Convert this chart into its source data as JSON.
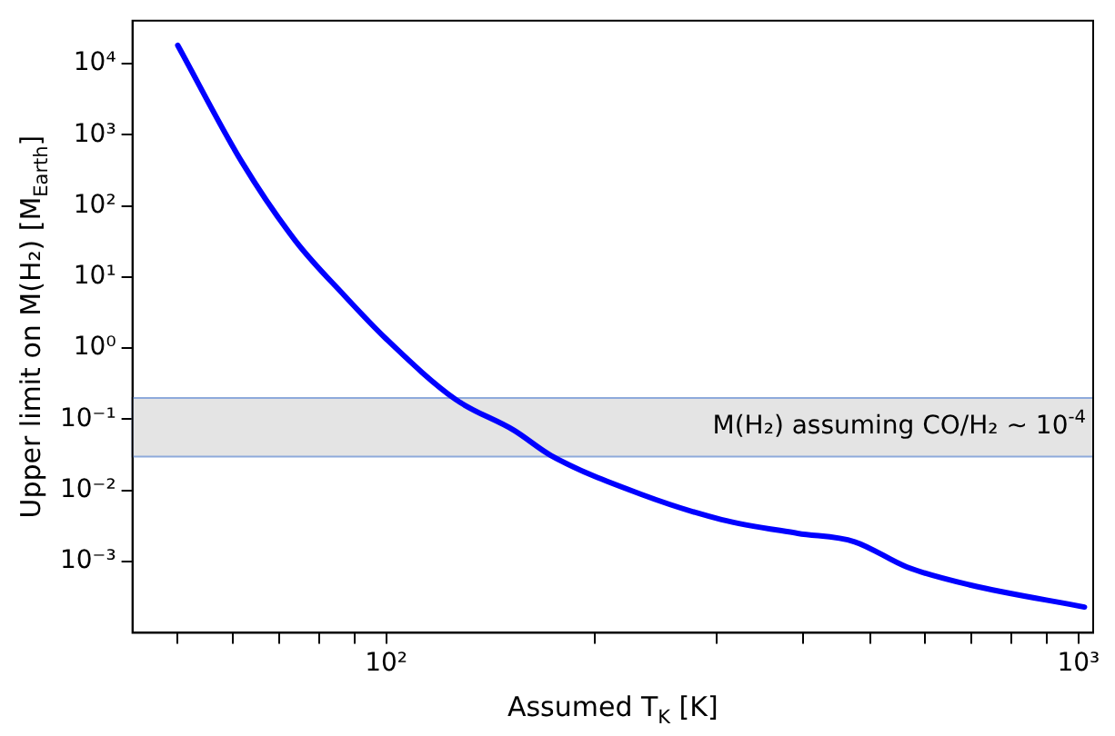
{
  "chart_data": {
    "type": "line",
    "xlabel": "Assumed T$_{K}$ [K]",
    "ylabel": "Upper limit on M(H₂) [M$_{Earth}$]",
    "log": "xy",
    "grid": false,
    "legend": false,
    "marker": "none",
    "line_style": "solid",
    "xlim": [
      43,
      1050
    ],
    "ylim": [
      0.0001,
      40000
    ],
    "xticks": [
      {
        "value": 50,
        "label": null
      },
      {
        "value": 60,
        "label": null
      },
      {
        "value": 70,
        "label": null
      },
      {
        "value": 80,
        "label": null
      },
      {
        "value": 90,
        "label": null
      },
      {
        "value": 100,
        "label": "10²"
      },
      {
        "value": 200,
        "label": null
      },
      {
        "value": 300,
        "label": null
      },
      {
        "value": 400,
        "label": null
      },
      {
        "value": 500,
        "label": null
      },
      {
        "value": 600,
        "label": null
      },
      {
        "value": 700,
        "label": null
      },
      {
        "value": 800,
        "label": null
      },
      {
        "value": 900,
        "label": null
      },
      {
        "value": 1000,
        "label": "10³"
      }
    ],
    "yticks": [
      {
        "value": 0.001,
        "label": "10⁻³"
      },
      {
        "value": 0.01,
        "label": "10⁻²"
      },
      {
        "value": 0.1,
        "label": "10⁻¹"
      },
      {
        "value": 1,
        "label": "10⁰"
      },
      {
        "value": 10,
        "label": "10¹"
      },
      {
        "value": 100,
        "label": "10²"
      },
      {
        "value": 1000,
        "label": "10³"
      },
      {
        "value": 10000,
        "label": "10⁴"
      }
    ],
    "series": [
      {
        "color": "#0000ff",
        "x": [
          50,
          62,
          74,
          87,
          100,
          126,
          153,
          173,
          233,
          305,
          393,
          475,
          565,
          697,
          1020
        ],
        "values": [
          18000,
          400,
          32,
          5.5,
          1.35,
          0.19,
          0.07,
          0.031,
          0.0089,
          0.0039,
          0.0025,
          0.0019,
          0.00084,
          0.00047,
          0.00023
        ]
      }
    ],
    "bands": [
      {
        "axis": "y",
        "from": 0.03,
        "to": 0.2,
        "label": "M(H₂) assuming CO/H₂ ~ 10$^{-4}$",
        "color": "#d9d9d9"
      }
    ]
  }
}
